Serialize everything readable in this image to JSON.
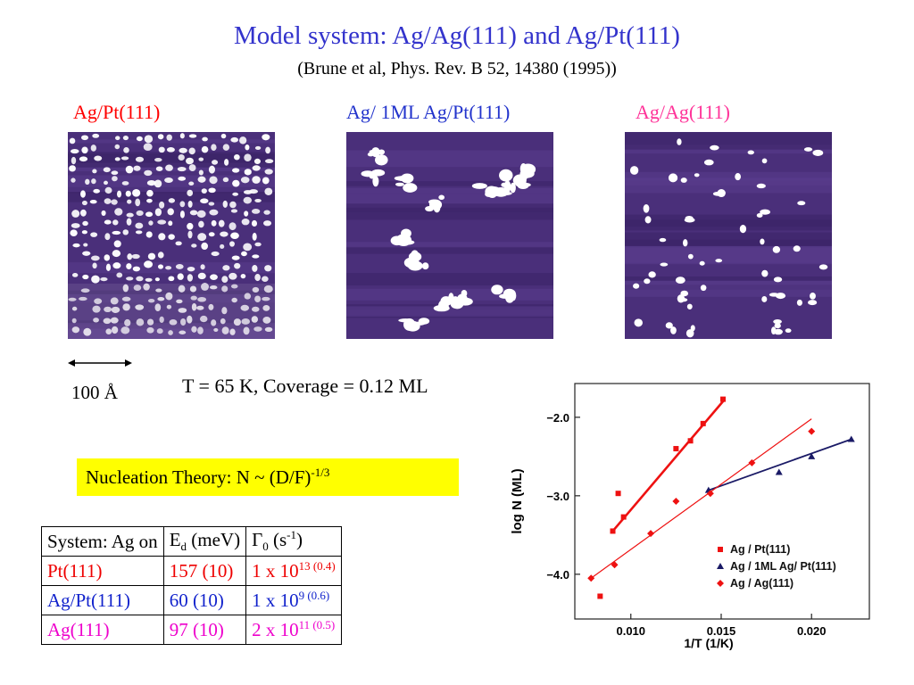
{
  "header": {
    "title": "Model system: Ag/Ag(111) and Ag/Pt(111)",
    "reference": "(Brune et al, Phys. Rev. B 52, 14380 (1995))"
  },
  "images": [
    {
      "label": "Ag/Pt(111)",
      "color": "#ff0000"
    },
    {
      "label": "Ag/ 1ML Ag/Pt(111)",
      "color": "#2233cc"
    },
    {
      "label": "Ag/Ag(111)",
      "color": "#ff3399"
    }
  ],
  "scale": {
    "value": "100",
    "unit": "Å"
  },
  "condition": "T = 65 K, Coverage = 0.12 ML",
  "theory": {
    "prefix": "Nucleation Theory: N ~ (D/F)",
    "exponent": "-1/3"
  },
  "table": {
    "headers": {
      "system": "System: Ag on",
      "ed_sym": "E",
      "ed_sub": "d",
      "ed_unit": " (meV)",
      "g_sym": "Γ",
      "g_sub": "0",
      "g_unit_pre": " (s",
      "g_unit_exp": "-1",
      "g_unit_post": ")"
    },
    "rows": [
      {
        "system": "Pt(111)",
        "ed": "157 (10)",
        "g_base": "1 x 10",
        "g_exp": "13 (0.4)",
        "color": "#ee0000"
      },
      {
        "system": "Ag/Pt(111)",
        "ed": "60 (10)",
        "g_base": "1 x 10",
        "g_exp": "9 (0.6)",
        "color": "#1122cc"
      },
      {
        "system": "Ag(111)",
        "ed": "97 (10)",
        "g_base": "2 x 10",
        "g_exp": "11 (0.5)",
        "color": "#ee00cc"
      }
    ]
  },
  "chart_data": {
    "type": "scatter",
    "xlabel": "1/T (1/K)",
    "ylabel": "log N (ML)",
    "x_ticks": [
      "0.010",
      "0.015",
      "0.020"
    ],
    "y_ticks": [
      "−2.0",
      "−3.0",
      "−4.0"
    ],
    "xlim": [
      0.0069,
      0.0232
    ],
    "ylim": [
      -4.57,
      -1.57
    ],
    "legend_position": "bottom-right",
    "series": [
      {
        "name": "Ag / Pt(111)",
        "color": "#ee1111",
        "marker": "square",
        "points": [
          [
            0.0083,
            -4.28
          ],
          [
            0.009,
            -3.45
          ],
          [
            0.0093,
            -2.97
          ],
          [
            0.0096,
            -3.27
          ],
          [
            0.0125,
            -2.4
          ],
          [
            0.0133,
            -2.3
          ],
          [
            0.014,
            -2.08
          ],
          [
            0.0151,
            -1.77
          ]
        ],
        "fit": [
          [
            0.009,
            -3.45
          ],
          [
            0.0152,
            -1.77
          ]
        ]
      },
      {
        "name": "Ag / 1ML Ag/ Pt(111)",
        "color": "#1a1a66",
        "marker": "triangle",
        "points": [
          [
            0.0143,
            -2.93
          ],
          [
            0.0182,
            -2.7
          ],
          [
            0.02,
            -2.5
          ],
          [
            0.0222,
            -2.28
          ]
        ],
        "fit": [
          [
            0.0143,
            -2.93
          ],
          [
            0.0222,
            -2.28
          ]
        ]
      },
      {
        "name": "Ag / Ag(111)",
        "color": "#ee1111",
        "marker": "diamond",
        "points": [
          [
            0.0078,
            -4.05
          ],
          [
            0.0091,
            -3.88
          ],
          [
            0.0111,
            -3.48
          ],
          [
            0.0125,
            -3.07
          ],
          [
            0.0144,
            -2.97
          ],
          [
            0.0167,
            -2.58
          ],
          [
            0.02,
            -2.18
          ]
        ],
        "fit": [
          [
            0.0078,
            -4.05
          ],
          [
            0.02,
            -2.02
          ]
        ]
      }
    ]
  }
}
